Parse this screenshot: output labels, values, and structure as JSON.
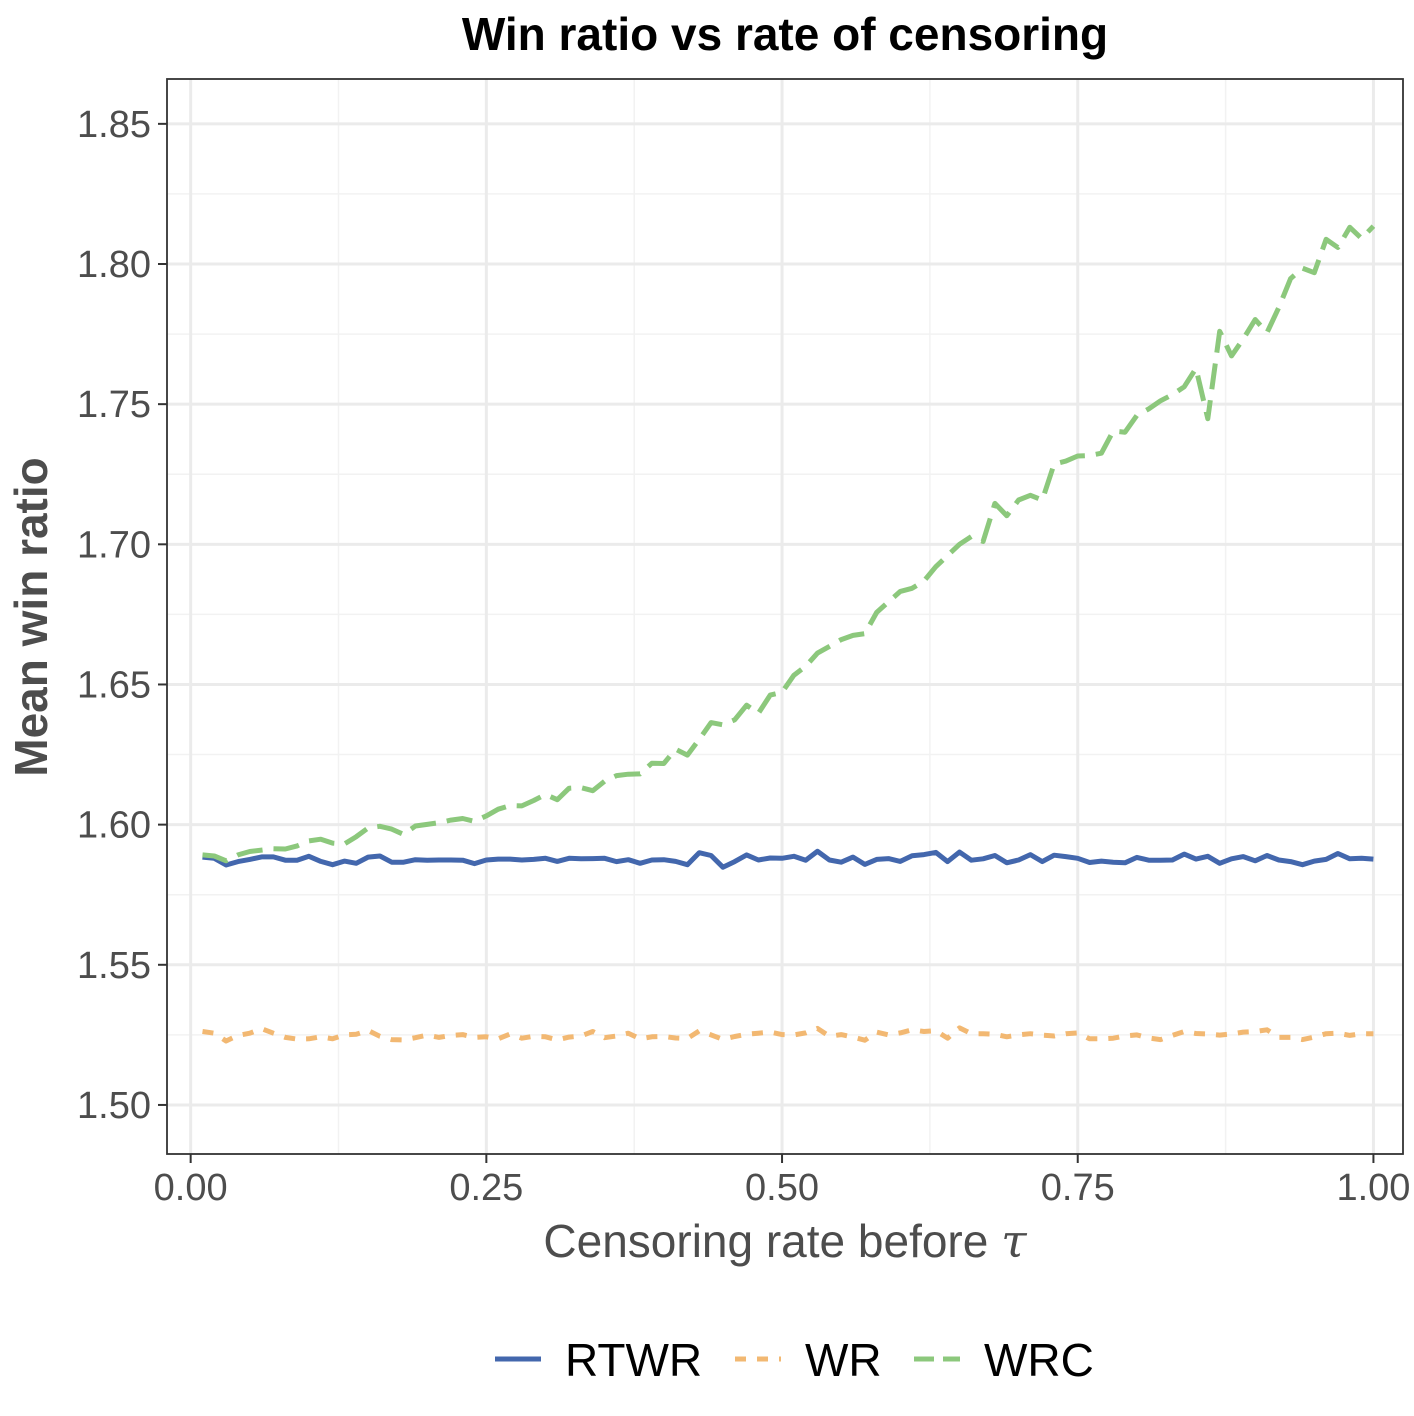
{
  "chart_data": {
    "type": "line",
    "title": "Win ratio vs rate of censoring",
    "xlabel": "Censoring rate before",
    "xlabel_symbol": "τ",
    "ylabel": "Mean win ratio",
    "xlim": [
      -0.02,
      1.025
    ],
    "ylim": [
      1.4825,
      1.866
    ],
    "x_ticks": [
      0.0,
      0.25,
      0.5,
      0.75,
      1.0
    ],
    "x_tick_labels": [
      "0.00",
      "0.25",
      "0.50",
      "0.75",
      "1.00"
    ],
    "y_ticks": [
      1.5,
      1.55,
      1.6,
      1.65,
      1.7,
      1.75,
      1.8,
      1.85
    ],
    "y_tick_labels": [
      "1.50",
      "1.55",
      "1.60",
      "1.65",
      "1.70",
      "1.75",
      "1.80",
      "1.85"
    ],
    "grid": true,
    "legend_position": "bottom",
    "x": [
      0.01,
      0.02,
      0.03,
      0.04,
      0.05,
      0.06,
      0.07,
      0.08,
      0.09,
      0.1,
      0.11,
      0.12,
      0.13,
      0.14,
      0.15,
      0.16,
      0.17,
      0.18,
      0.19,
      0.2,
      0.21,
      0.22,
      0.23,
      0.24,
      0.25,
      0.26,
      0.27,
      0.28,
      0.29,
      0.3,
      0.31,
      0.32,
      0.33,
      0.34,
      0.35,
      0.36,
      0.37,
      0.38,
      0.39,
      0.4,
      0.41,
      0.42,
      0.43,
      0.44,
      0.45,
      0.46,
      0.47,
      0.48,
      0.49,
      0.5,
      0.51,
      0.52,
      0.53,
      0.54,
      0.55,
      0.56,
      0.57,
      0.58,
      0.59,
      0.6,
      0.61,
      0.62,
      0.63,
      0.64,
      0.65,
      0.66,
      0.67,
      0.68,
      0.69,
      0.7,
      0.71,
      0.72,
      0.73,
      0.74,
      0.75,
      0.76,
      0.77,
      0.78,
      0.79,
      0.8,
      0.81,
      0.82,
      0.83,
      0.84,
      0.85,
      0.86,
      0.87,
      0.88,
      0.89,
      0.9,
      0.91,
      0.92,
      0.93,
      0.94,
      0.95,
      0.96,
      0.97,
      0.98,
      0.99,
      1.0
    ],
    "series": [
      {
        "name": "RTWR",
        "color": "#4367ad",
        "dash": "solid",
        "values": [
          1.5884,
          1.588,
          1.5856,
          1.5868,
          1.5876,
          1.5885,
          1.5885,
          1.5873,
          1.5873,
          1.5887,
          1.5869,
          1.5857,
          1.587,
          1.5862,
          1.5884,
          1.5888,
          1.5866,
          1.5866,
          1.5875,
          1.5873,
          1.5874,
          1.5874,
          1.5873,
          1.5861,
          1.5874,
          1.5877,
          1.5877,
          1.5874,
          1.5876,
          1.588,
          1.5869,
          1.588,
          1.5878,
          1.5879,
          1.588,
          1.5868,
          1.5875,
          1.5862,
          1.5874,
          1.5875,
          1.5869,
          1.5857,
          1.59,
          1.589,
          1.5848,
          1.5868,
          1.5892,
          1.5874,
          1.5881,
          1.588,
          1.5887,
          1.5873,
          1.5905,
          1.5874,
          1.5866,
          1.5884,
          1.5858,
          1.5876,
          1.5879,
          1.5869,
          1.5889,
          1.5893,
          1.5901,
          1.5868,
          1.5902,
          1.5873,
          1.5878,
          1.589,
          1.5864,
          1.5874,
          1.5893,
          1.5868,
          1.5891,
          1.5886,
          1.588,
          1.5865,
          1.587,
          1.5866,
          1.5864,
          1.5883,
          1.5873,
          1.5873,
          1.5874,
          1.5895,
          1.5877,
          1.5887,
          1.5862,
          1.5878,
          1.5886,
          1.5871,
          1.589,
          1.5874,
          1.5868,
          1.5857,
          1.587,
          1.5876,
          1.5897,
          1.5878,
          1.588,
          1.5877
        ]
      },
      {
        "name": "WR",
        "color": "#f2b872",
        "dash": "dashed",
        "values": [
          1.5262,
          1.5256,
          1.5228,
          1.5248,
          1.5256,
          1.5272,
          1.5256,
          1.5241,
          1.5235,
          1.5236,
          1.5243,
          1.5236,
          1.525,
          1.5252,
          1.5266,
          1.5245,
          1.5233,
          1.5232,
          1.524,
          1.5249,
          1.5241,
          1.5248,
          1.5251,
          1.5241,
          1.5243,
          1.5236,
          1.5253,
          1.5238,
          1.5245,
          1.5243,
          1.5232,
          1.5242,
          1.5246,
          1.5262,
          1.524,
          1.5246,
          1.5256,
          1.5236,
          1.5243,
          1.5244,
          1.5239,
          1.5237,
          1.5264,
          1.525,
          1.5234,
          1.5244,
          1.5252,
          1.5256,
          1.526,
          1.5251,
          1.525,
          1.5257,
          1.5273,
          1.5245,
          1.5251,
          1.5242,
          1.5231,
          1.526,
          1.525,
          1.5257,
          1.5268,
          1.5262,
          1.5265,
          1.5238,
          1.5275,
          1.5254,
          1.5254,
          1.5252,
          1.5243,
          1.525,
          1.5254,
          1.5249,
          1.5246,
          1.5254,
          1.5257,
          1.5236,
          1.5236,
          1.5238,
          1.5246,
          1.525,
          1.5239,
          1.5233,
          1.5248,
          1.5262,
          1.5255,
          1.5253,
          1.5249,
          1.5253,
          1.526,
          1.5262,
          1.5268,
          1.5241,
          1.5241,
          1.5233,
          1.5242,
          1.5254,
          1.5256,
          1.5248,
          1.5254,
          1.5254
        ]
      },
      {
        "name": "WRC",
        "color": "#8cc87c",
        "dash": "longdash",
        "values": [
          1.5892,
          1.5888,
          1.5871,
          1.5892,
          1.5904,
          1.5909,
          1.5914,
          1.5913,
          1.5924,
          1.5942,
          1.5948,
          1.5934,
          1.5931,
          1.5957,
          1.5988,
          1.5994,
          1.5984,
          1.5965,
          1.5995,
          1.6001,
          1.6007,
          1.6016,
          1.6022,
          1.6012,
          1.6031,
          1.6055,
          1.6068,
          1.6067,
          1.6086,
          1.6108,
          1.6089,
          1.613,
          1.6132,
          1.6121,
          1.6155,
          1.6175,
          1.618,
          1.6181,
          1.6219,
          1.6218,
          1.6269,
          1.6248,
          1.6304,
          1.6364,
          1.6356,
          1.6374,
          1.6426,
          1.6397,
          1.6462,
          1.6472,
          1.6533,
          1.6565,
          1.6612,
          1.6636,
          1.666,
          1.6675,
          1.6681,
          1.6757,
          1.6795,
          1.6832,
          1.6843,
          1.6869,
          1.692,
          1.696,
          1.7,
          1.7028,
          1.701,
          1.7146,
          1.7102,
          1.7158,
          1.7175,
          1.7158,
          1.7286,
          1.7297,
          1.7315,
          1.7317,
          1.7325,
          1.7404,
          1.74,
          1.746,
          1.7483,
          1.7512,
          1.7534,
          1.7562,
          1.7628,
          1.7448,
          1.776,
          1.7672,
          1.7733,
          1.7802,
          1.7755,
          1.7845,
          1.7948,
          1.7985,
          1.7969,
          1.8088,
          1.8059,
          1.8131,
          1.8091,
          1.8135
        ]
      }
    ]
  }
}
